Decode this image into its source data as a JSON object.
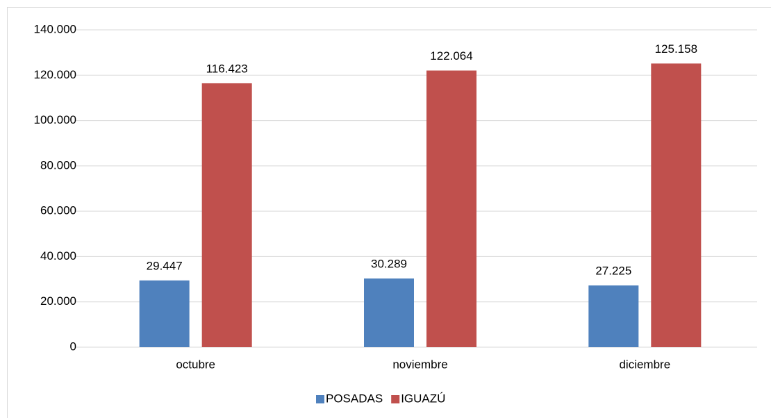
{
  "chart_data": {
    "type": "bar",
    "categories": [
      "octubre",
      "noviembre",
      "diciembre"
    ],
    "series": [
      {
        "name": "POSADAS",
        "color": "#4f81bd",
        "values": [
          29447,
          30289,
          27225
        ],
        "value_labels": [
          "29.447",
          "30.289",
          "27.225"
        ]
      },
      {
        "name": "IGUAZÚ",
        "color": "#c0504d",
        "values": [
          116423,
          122064,
          125158
        ],
        "value_labels": [
          "116.423",
          "122.064",
          "125.158"
        ]
      }
    ],
    "ylim": [
      0,
      140000
    ],
    "yticks": [
      0,
      {
        "value": 20000,
        "label": "20.000"
      },
      {
        "value": 40000,
        "label": "40.000"
      },
      {
        "value": 60000,
        "label": "60.000"
      },
      {
        "value": 80000,
        "label": "80.000"
      },
      {
        "value": 100000,
        "label": "100.000"
      },
      {
        "value": 120000,
        "label": "120.000"
      },
      {
        "value": 140000,
        "label": "140.000"
      }
    ],
    "grid": true,
    "legend": "bottom"
  }
}
